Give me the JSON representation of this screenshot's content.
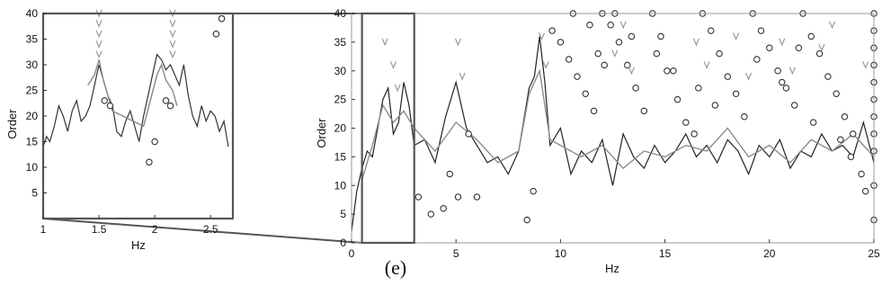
{
  "caption": "(e)",
  "chart_data": [
    {
      "id": "main",
      "type": "line",
      "xlabel": "Hz",
      "ylabel": "Order",
      "xlim": [
        0,
        25
      ],
      "ylim": [
        0,
        40
      ],
      "x_ticks": [
        0,
        5,
        10,
        15,
        20,
        25
      ],
      "y_ticks": [
        0,
        5,
        10,
        15,
        20,
        25,
        30,
        35,
        40
      ],
      "grid": false,
      "highlight_box": {
        "x": [
          0.5,
          3.0
        ],
        "y": [
          0,
          40
        ]
      },
      "series": [
        {
          "style": "dark-line",
          "color": "#222222",
          "x": [
            0,
            0.25,
            0.5,
            0.75,
            1,
            1.25,
            1.5,
            1.75,
            2,
            2.25,
            2.5,
            2.75,
            3,
            3.5,
            4,
            4.5,
            5,
            5.5,
            6,
            6.5,
            7,
            7.5,
            8,
            8.5,
            8.75,
            9,
            9.25,
            9.5,
            10,
            10.5,
            11,
            11.5,
            12,
            12.5,
            13,
            13.5,
            14,
            14.5,
            15,
            15.5,
            16,
            16.5,
            17,
            17.5,
            18,
            18.5,
            19,
            19.5,
            20,
            20.5,
            21,
            21.5,
            22,
            22.5,
            23,
            23.5,
            24,
            24.5,
            25
          ],
          "y": [
            2,
            9,
            13,
            16,
            15,
            20,
            25,
            27,
            19,
            21,
            28,
            24,
            17,
            18,
            14,
            22,
            28,
            20,
            17,
            14,
            15,
            12,
            16,
            27,
            29,
            36,
            28,
            17,
            20,
            12,
            16,
            14,
            18,
            10,
            19,
            15,
            13,
            17,
            14,
            16,
            19,
            15,
            17,
            14,
            18,
            16,
            12,
            17,
            15,
            18,
            13,
            16,
            15,
            19,
            16,
            17,
            15,
            21,
            14
          ]
        },
        {
          "style": "grey-line",
          "color": "#8c8c8c",
          "x": [
            0.5,
            1,
            1.5,
            2,
            2.5,
            3,
            4,
            5,
            6,
            7,
            8,
            8.5,
            9,
            9.5,
            10,
            11,
            12,
            13,
            14,
            15,
            16,
            17,
            18,
            19,
            20,
            21,
            22,
            23,
            24,
            25
          ],
          "y": [
            11,
            17,
            24,
            21,
            23,
            20,
            16,
            21,
            18,
            14,
            16,
            26,
            30,
            18,
            17,
            15,
            17,
            13,
            16,
            15,
            17,
            16,
            20,
            15,
            17,
            14,
            18,
            16,
            19,
            15
          ]
        },
        {
          "style": "circle-markers",
          "color": "#333333",
          "x": [
            3.2,
            3.8,
            4.4,
            4.7,
            5.1,
            5.6,
            6.0,
            8.4,
            8.7,
            9.6,
            10.0,
            10.4,
            10.8,
            11.2,
            11.6,
            12.0,
            12.4,
            12.8,
            13.2,
            13.6,
            14.0,
            14.4,
            14.8,
            15.1,
            15.6,
            16.0,
            16.4,
            16.8,
            17.2,
            17.6,
            18.0,
            18.4,
            18.8,
            19.2,
            19.6,
            20.0,
            20.4,
            20.8,
            21.2,
            21.6,
            22.0,
            22.4,
            22.8,
            23.2,
            23.6,
            24.0,
            24.6,
            25.0,
            25.0,
            25.0,
            25.0,
            25.0,
            25.0,
            25.0,
            25.0,
            25.0,
            25.0,
            25.0,
            24.4,
            23.9,
            23.4,
            22.1,
            21.4,
            20.6,
            19.4,
            17.4,
            16.6,
            15.4,
            14.6,
            13.4,
            12.6,
            11.4,
            10.6,
            11.8,
            12.1
          ],
          "y": [
            8,
            5,
            6,
            12,
            8,
            19,
            8,
            4,
            9,
            37,
            35,
            32,
            29,
            26,
            23,
            40,
            38,
            35,
            31,
            27,
            23,
            40,
            36,
            30,
            25,
            21,
            19,
            40,
            37,
            33,
            29,
            26,
            22,
            40,
            37,
            34,
            30,
            27,
            24,
            40,
            36,
            33,
            29,
            26,
            22,
            19,
            9,
            40,
            37,
            34,
            31,
            28,
            25,
            22,
            19,
            16,
            10,
            4,
            12,
            15,
            18,
            21,
            34,
            28,
            32,
            24,
            27,
            30,
            33,
            36,
            40,
            38,
            40,
            33,
            31
          ]
        },
        {
          "style": "grey-v-markers",
          "color": "#9a9a9a",
          "x": [
            1.6,
            2.0,
            2.2,
            5.1,
            5.3,
            9.1,
            9.3,
            12.6,
            13.0,
            13.4,
            16.5,
            17.0,
            18.4,
            19.0,
            20.6,
            21.1,
            22.5,
            23.0,
            24.6
          ],
          "y": [
            35,
            31,
            27,
            35,
            29,
            36,
            31,
            33,
            38,
            30,
            35,
            31,
            36,
            29,
            35,
            30,
            34,
            38,
            31
          ]
        }
      ]
    },
    {
      "id": "inset",
      "type": "line",
      "xlabel": "Hz",
      "ylabel": "Order",
      "xlim": [
        1,
        2.7
      ],
      "ylim": [
        0,
        40
      ],
      "x_ticks": [
        1,
        1.5,
        2,
        2.5
      ],
      "y_ticks": [
        5,
        10,
        15,
        20,
        25,
        30,
        35,
        40
      ],
      "grid": false,
      "series": [
        {
          "style": "dark-line",
          "color": "#333333",
          "x": [
            1,
            1.03,
            1.06,
            1.1,
            1.14,
            1.18,
            1.22,
            1.26,
            1.3,
            1.34,
            1.38,
            1.42,
            1.46,
            1.5,
            1.54,
            1.58,
            1.62,
            1.66,
            1.7,
            1.74,
            1.78,
            1.82,
            1.86,
            1.9,
            1.94,
            1.98,
            2.02,
            2.06,
            2.1,
            2.14,
            2.18,
            2.22,
            2.26,
            2.3,
            2.34,
            2.38,
            2.42,
            2.46,
            2.5,
            2.54,
            2.58,
            2.62,
            2.66
          ],
          "y": [
            14,
            16,
            15,
            18,
            22,
            20,
            17,
            21,
            23,
            19,
            20,
            22,
            26,
            30,
            27,
            24,
            22,
            17,
            16,
            19,
            21,
            18,
            15,
            20,
            24,
            28,
            32,
            31,
            29,
            30,
            28,
            26,
            30,
            24,
            20,
            18,
            22,
            19,
            21,
            20,
            17,
            19,
            14
          ]
        },
        {
          "style": "grey-line",
          "color": "#888888",
          "x": [
            1.4,
            1.46,
            1.5,
            1.54,
            1.58,
            1.62,
            1.9,
            1.96,
            2.02,
            2.06,
            2.1,
            2.16,
            2.2
          ],
          "y": [
            26,
            28,
            31,
            27,
            24,
            21,
            18,
            23,
            28,
            30,
            27,
            25,
            22
          ]
        },
        {
          "style": "circle-markers",
          "color": "#333333",
          "x": [
            1.55,
            1.6,
            1.95,
            2.0,
            2.1,
            2.14,
            2.55,
            2.6,
            2.6
          ],
          "y": [
            23,
            22,
            11,
            15,
            23,
            22,
            36,
            39,
            39
          ]
        },
        {
          "style": "grey-v-markers",
          "color": "#999999",
          "x": [
            1.5,
            1.5,
            1.5,
            1.5,
            1.5,
            2.16,
            2.16,
            2.16,
            2.16,
            2.16
          ],
          "y": [
            32,
            34,
            36,
            38,
            40,
            32,
            34,
            36,
            38,
            40
          ]
        }
      ]
    }
  ]
}
